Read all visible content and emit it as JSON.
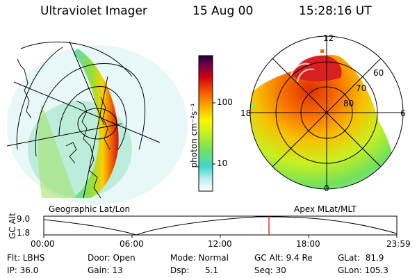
{
  "header": {
    "instrument": "Ultraviolet Imager",
    "date": "15 Aug 00",
    "time": "15:28:16 UT"
  },
  "colorbar": {
    "unit_label": "photon cm⁻²s⁻¹",
    "ticks": [
      "100",
      "10"
    ],
    "scale": "log"
  },
  "left_panel": {
    "caption": "Geographic Lat/Lon"
  },
  "right_panel": {
    "caption": "Apex MLat/MLT",
    "mlt_labels": [
      "12",
      "18",
      "6",
      "0"
    ],
    "mlat_labels": [
      "60",
      "70",
      "80"
    ]
  },
  "orbit": {
    "ylabel": "GC Alt",
    "y_ticks": [
      "9.0",
      "1.8"
    ],
    "x_ticks": [
      "00:00",
      "06:00",
      "12:00",
      "18:00",
      "23:59"
    ],
    "current_marker_time": "15:28"
  },
  "status": {
    "row1": {
      "flt": "Flt: LBHS",
      "door": "Door: Open",
      "mode": "Mode: Normal",
      "gcalt": "GC Alt: 9.4 Re",
      "glat": "GLat:  81.9"
    },
    "row2": {
      "ip": "IP: 36.0",
      "gain": "Gain: 13",
      "dsp": "Dsp:      5.1",
      "seq": "Seq: 30",
      "glon": "GLon: 105.3"
    }
  },
  "colors": {
    "colorscale": [
      "#ffffff",
      "#c8f0f0",
      "#40d8d0",
      "#70e060",
      "#c0f020",
      "#f8f800",
      "#f8c000",
      "#f88000",
      "#f04000",
      "#d00010",
      "#800040",
      "#200040"
    ],
    "orbit_marker": "#e00000"
  }
}
